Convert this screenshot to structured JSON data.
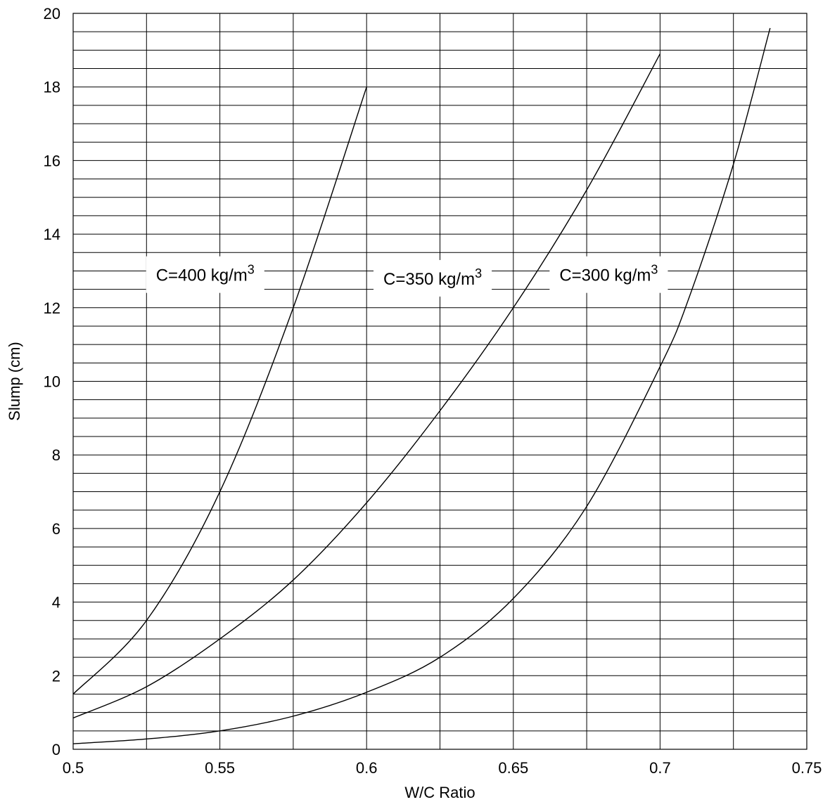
{
  "chart_data": {
    "type": "line",
    "xlabel": "W/C Ratio",
    "ylabel": "Slump (cm)",
    "xlim": [
      0.5,
      0.75
    ],
    "ylim": [
      0,
      20
    ],
    "x_ticks": [
      "0.5",
      "0.55",
      "0.6",
      "0.65",
      "0.7",
      "0.75"
    ],
    "y_ticks": [
      "0",
      "2",
      "4",
      "6",
      "8",
      "10",
      "12",
      "14",
      "16",
      "18",
      "20"
    ],
    "x_minor_step": 0.025,
    "y_minor_step": 0.5,
    "grid": true,
    "legend": "inline labels",
    "series": [
      {
        "name": "C=400 kg/m3",
        "label_main": "C=400 kg/m",
        "label_sup": "3",
        "label_pos": [
          0.545,
          12.9
        ],
        "x": [
          0.5,
          0.525,
          0.55,
          0.575,
          0.6
        ],
        "y": [
          1.5,
          3.5,
          7.0,
          12.0,
          18.0
        ]
      },
      {
        "name": "C=350 kg/m3",
        "label_main": "C=350 kg/m",
        "label_sup": "3",
        "label_pos": [
          0.6225,
          12.8
        ],
        "x": [
          0.5,
          0.525,
          0.55,
          0.575,
          0.6,
          0.625,
          0.65,
          0.675,
          0.7
        ],
        "y": [
          0.85,
          1.7,
          3.0,
          4.6,
          6.7,
          9.2,
          12.0,
          15.2,
          18.9
        ]
      },
      {
        "name": "C=300 kg/m3",
        "label_main": "C=300 kg/m",
        "label_sup": "3",
        "label_pos": [
          0.6825,
          12.9
        ],
        "x": [
          0.5,
          0.525,
          0.55,
          0.575,
          0.6,
          0.625,
          0.65,
          0.675,
          0.7,
          0.71,
          0.725,
          0.7375
        ],
        "y": [
          0.15,
          0.28,
          0.5,
          0.9,
          1.55,
          2.5,
          4.1,
          6.6,
          10.4,
          12.3,
          15.9,
          19.6
        ]
      }
    ]
  }
}
